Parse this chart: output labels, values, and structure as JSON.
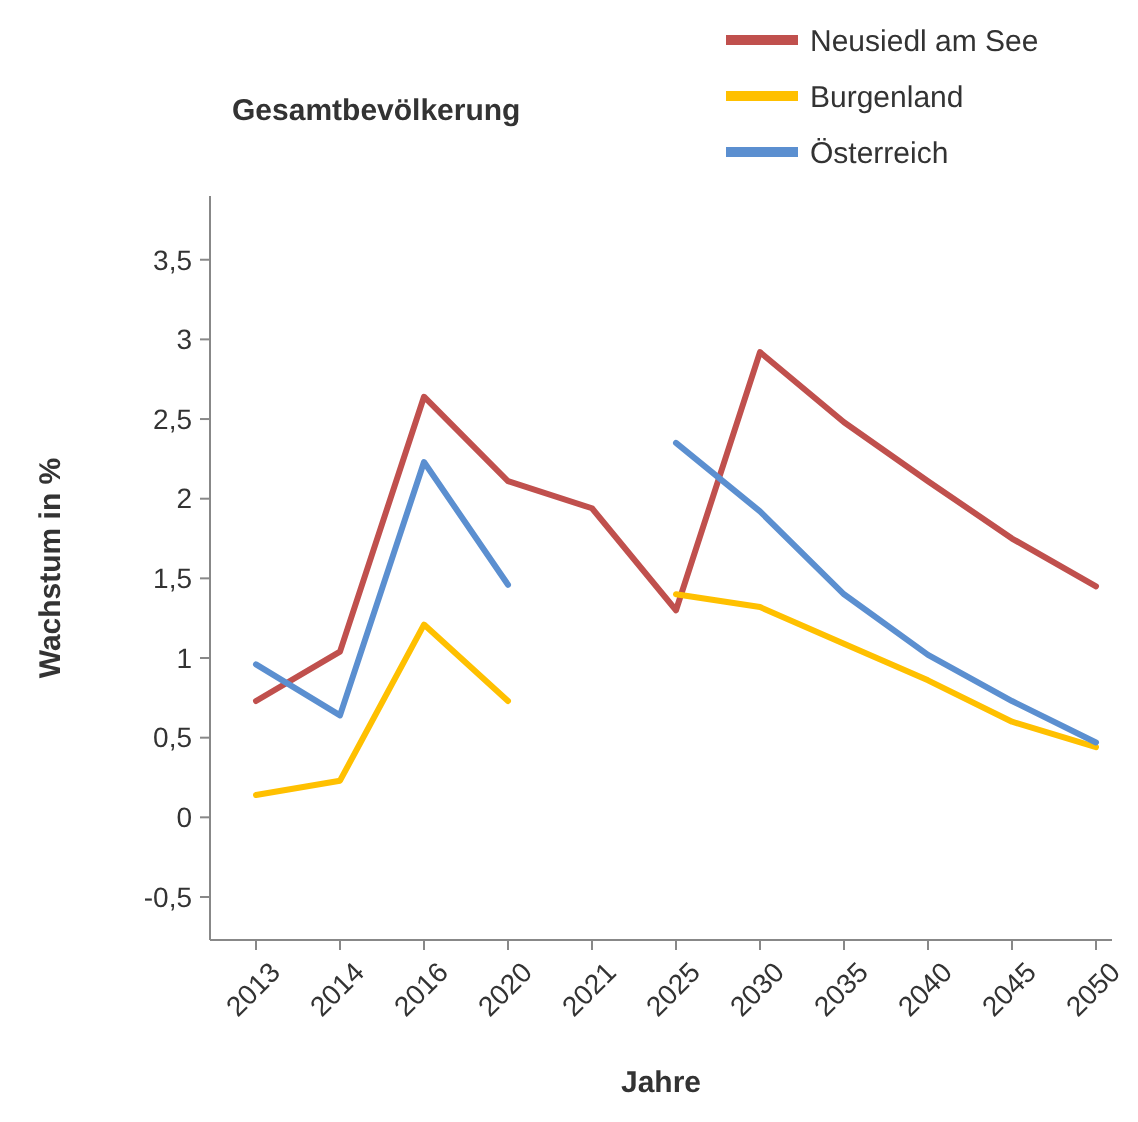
{
  "chart_data": {
    "type": "line",
    "title": "Gesamtbevölkerung",
    "xlabel": "Jahre",
    "ylabel": "Wachstum in %",
    "categories": [
      "2013",
      "2014",
      "2016",
      "2020",
      "2021",
      "2025",
      "2030",
      "2035",
      "2040",
      "2045",
      "2050"
    ],
    "series": [
      {
        "name": "Neusiedl am See",
        "color": "#c0504d",
        "values": [
          0.73,
          1.04,
          2.64,
          2.11,
          1.94,
          1.3,
          2.92,
          2.48,
          2.11,
          1.75,
          1.45
        ]
      },
      {
        "name": "Burgenland",
        "color": "#ffc000",
        "values": [
          0.14,
          0.23,
          1.21,
          0.73,
          null,
          1.4,
          1.32,
          1.09,
          0.86,
          0.6,
          0.44
        ]
      },
      {
        "name": "Österreich",
        "color": "#5b8fd0",
        "values": [
          0.96,
          0.64,
          2.23,
          1.46,
          null,
          2.35,
          1.92,
          1.4,
          1.02,
          0.73,
          0.47
        ]
      }
    ],
    "ylim": [
      -0.77,
      3.9
    ],
    "yticks": [
      {
        "value": -0.5,
        "label": "-0,5"
      },
      0,
      {
        "value": 0.5,
        "label": "0,5"
      },
      1,
      {
        "value": 1.5,
        "label": "1,5"
      },
      2,
      {
        "value": 2.5,
        "label": "2,5"
      },
      3,
      {
        "value": 3.5,
        "label": "3,5"
      }
    ],
    "legend": "top right",
    "grid": false,
    "marker": "none",
    "line_style": "solid"
  }
}
